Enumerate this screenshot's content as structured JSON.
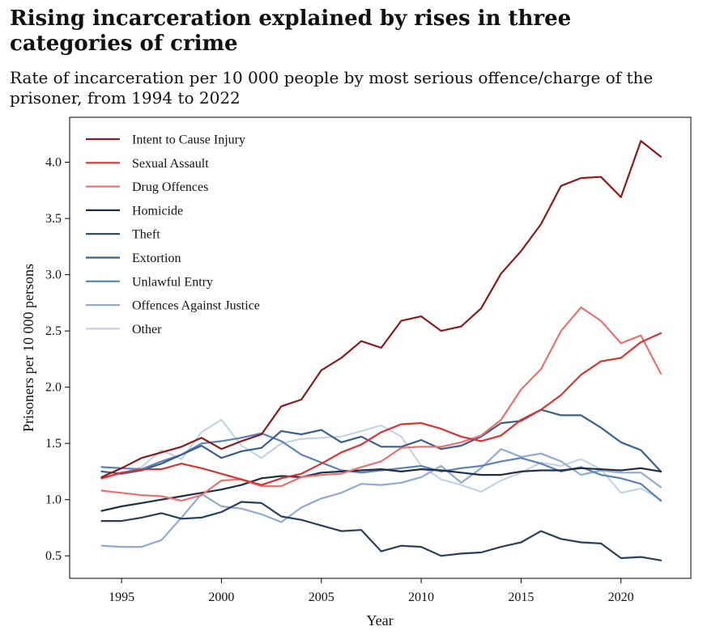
{
  "chart_data": {
    "type": "line",
    "title": "Rising incarceration explained by rises in three categories of crime",
    "subtitle": "Rate of incarceration per 10 000 people by most serious offence/charge of the prisoner, from 1994 to 2022",
    "xlabel": "Year",
    "ylabel": "Prisoners per 10 000 persons",
    "xlim": [
      1992.4,
      2023.5
    ],
    "ylim": [
      0.3,
      4.4
    ],
    "xticks": [
      1995,
      2000,
      2005,
      2010,
      2015,
      2020
    ],
    "yticks": [
      0.5,
      1.0,
      1.5,
      2.0,
      2.5,
      3.0,
      3.5,
      4.0
    ],
    "grid": false,
    "legend_position": "top-left",
    "x": [
      1994,
      1995,
      1996,
      1997,
      1998,
      1999,
      2000,
      2001,
      2002,
      2003,
      2004,
      2005,
      2006,
      2007,
      2008,
      2009,
      2010,
      2011,
      2012,
      2013,
      2014,
      2015,
      2016,
      2017,
      2018,
      2019,
      2020,
      2021,
      2022
    ],
    "series": [
      {
        "name": "Intent to Cause Injury",
        "color": "#8b1a1a",
        "values": [
          1.2,
          1.28,
          1.37,
          1.42,
          1.47,
          1.55,
          1.45,
          1.52,
          1.58,
          1.83,
          1.89,
          2.15,
          2.26,
          2.41,
          2.35,
          2.59,
          2.63,
          2.5,
          2.54,
          2.7,
          3.01,
          3.21,
          3.45,
          3.79,
          3.86,
          3.87,
          3.69,
          4.19,
          4.05
        ]
      },
      {
        "name": "Sexual Assault",
        "color": "#dc3232",
        "values": [
          1.19,
          1.24,
          1.27,
          1.27,
          1.32,
          1.28,
          1.23,
          1.18,
          1.13,
          1.19,
          1.23,
          1.32,
          1.42,
          1.49,
          1.6,
          1.67,
          1.68,
          1.63,
          1.56,
          1.52,
          1.57,
          1.71,
          1.8,
          1.93,
          2.11,
          2.23,
          2.26,
          2.4,
          2.48
        ]
      },
      {
        "name": "Drug Offences",
        "color": "#eb7070",
        "values": [
          1.08,
          1.06,
          1.04,
          1.03,
          0.99,
          1.04,
          1.17,
          1.18,
          1.12,
          1.12,
          1.2,
          1.22,
          1.23,
          1.29,
          1.34,
          1.46,
          1.47,
          1.47,
          1.51,
          1.57,
          1.71,
          1.98,
          2.16,
          2.5,
          2.71,
          2.59,
          2.39,
          2.46,
          2.12
        ]
      },
      {
        "name": "Homicide",
        "color": "#1f2d45",
        "values": [
          0.9,
          0.94,
          0.97,
          1.0,
          1.03,
          1.06,
          1.09,
          1.13,
          1.19,
          1.21,
          1.2,
          1.24,
          1.25,
          1.26,
          1.27,
          1.25,
          1.27,
          1.26,
          1.24,
          1.22,
          1.22,
          1.25,
          1.26,
          1.26,
          1.28,
          1.27,
          1.26,
          1.28,
          1.25
        ]
      },
      {
        "name": "Theft",
        "color": "#27405f",
        "values": [
          0.81,
          0.81,
          0.84,
          0.88,
          0.83,
          0.84,
          0.89,
          0.98,
          0.97,
          0.85,
          0.82,
          0.77,
          0.72,
          0.73,
          0.54,
          0.59,
          0.58,
          0.5,
          0.52,
          0.53,
          0.58,
          0.62,
          0.72,
          0.65,
          0.62,
          0.61,
          0.48,
          0.49,
          0.46
        ]
      },
      {
        "name": "Extortion",
        "color": "#3a5f8c",
        "values": [
          1.25,
          1.23,
          1.26,
          1.32,
          1.4,
          1.48,
          1.37,
          1.43,
          1.46,
          1.61,
          1.58,
          1.62,
          1.51,
          1.56,
          1.47,
          1.47,
          1.53,
          1.45,
          1.48,
          1.56,
          1.68,
          1.7,
          1.8,
          1.75,
          1.75,
          1.64,
          1.51,
          1.44,
          1.25
        ]
      },
      {
        "name": "Unlawful Entry",
        "color": "#5b82b6",
        "values": [
          1.29,
          1.28,
          1.27,
          1.34,
          1.4,
          1.5,
          1.52,
          1.55,
          1.59,
          1.52,
          1.4,
          1.33,
          1.26,
          1.24,
          1.26,
          1.28,
          1.3,
          1.25,
          1.28,
          1.3,
          1.34,
          1.37,
          1.32,
          1.25,
          1.29,
          1.22,
          1.19,
          1.14,
          0.99
        ]
      },
      {
        "name": "Offences Against Justice",
        "color": "#8fabcf",
        "values": [
          0.59,
          0.58,
          0.58,
          0.64,
          0.84,
          1.05,
          0.94,
          0.92,
          0.87,
          0.8,
          0.93,
          1.01,
          1.06,
          1.14,
          1.13,
          1.15,
          1.2,
          1.3,
          1.15,
          1.28,
          1.45,
          1.38,
          1.41,
          1.34,
          1.22,
          1.26,
          1.24,
          1.24,
          1.11
        ]
      },
      {
        "name": "Other",
        "color": "#c4d3e7",
        "values": [
          1.18,
          1.23,
          1.29,
          1.44,
          1.36,
          1.6,
          1.71,
          1.48,
          1.37,
          1.5,
          1.54,
          1.55,
          1.56,
          1.61,
          1.66,
          1.56,
          1.3,
          1.18,
          1.13,
          1.07,
          1.17,
          1.24,
          1.33,
          1.3,
          1.36,
          1.27,
          1.06,
          1.1,
          1.0
        ]
      }
    ]
  }
}
